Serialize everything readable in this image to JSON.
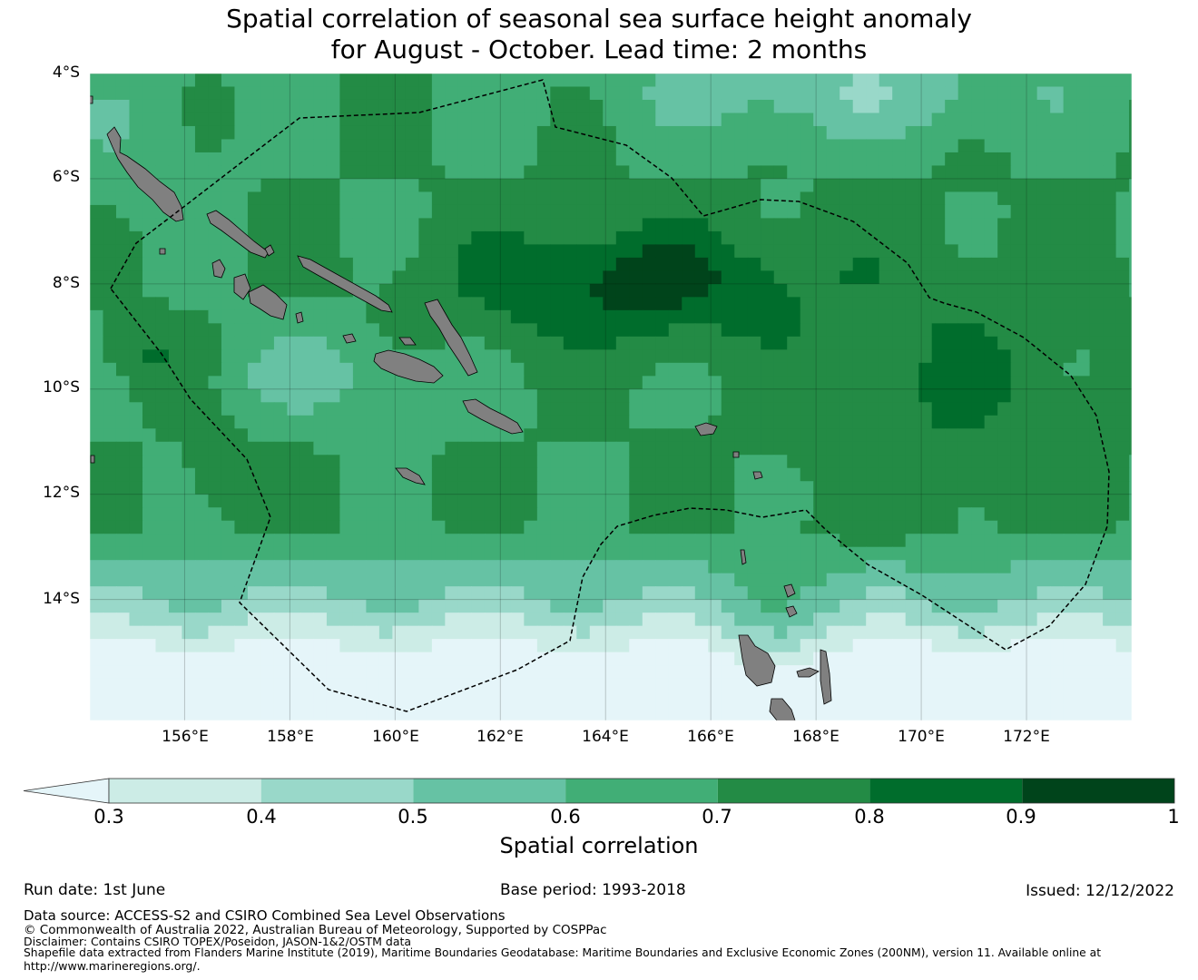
{
  "title_line1": "Spatial correlation of seasonal sea surface height anomaly",
  "title_line2": "for August - October. Lead time: 2 months",
  "map": {
    "lat_labels": [
      "4°S",
      "6°S",
      "8°S",
      "10°S",
      "12°S",
      "14°S"
    ],
    "lon_labels": [
      "156°E",
      "158°E",
      "160°E",
      "162°E",
      "164°E",
      "166°E",
      "168°E",
      "170°E",
      "172°E"
    ],
    "land_color": "#808080",
    "eez_line": "dashed black"
  },
  "colorbar": {
    "label": "Spatial correlation",
    "ticks": [
      "0.3",
      "0.4",
      "0.5",
      "0.6",
      "0.7",
      "0.8",
      "0.9",
      "1"
    ],
    "colors": [
      "#e5f5f9",
      "#ccece6",
      "#99d8c9",
      "#66c2a4",
      "#41ae76",
      "#238b45",
      "#006d2c",
      "#00441b"
    ]
  },
  "footer": {
    "run_date": "Run date: 1st June",
    "base_period": "Base period: 1993-2018",
    "issued": "Issued: 12/12/2022",
    "data_source": "Data source: ACCESS-S2 and CSIRO Combined Sea Level Observations",
    "copyright": "© Commonwealth of Australia 2022, Australian Bureau of Meteorology, Supported by COSPPac",
    "disclaimer": "Disclaimer: Contains CSIRO TOPEX/Poseidon, JASON-1&2/OSTM data",
    "shapefile_1": "Shapefile data extracted from Flanders Marine Institute (2019), Maritime Boundaries Geodatabase: Maritime Boundaries and Exclusive Economic Zones (200NM), version 11. Available online at",
    "shapefile_2": "http://www.marineregions.org/."
  }
}
